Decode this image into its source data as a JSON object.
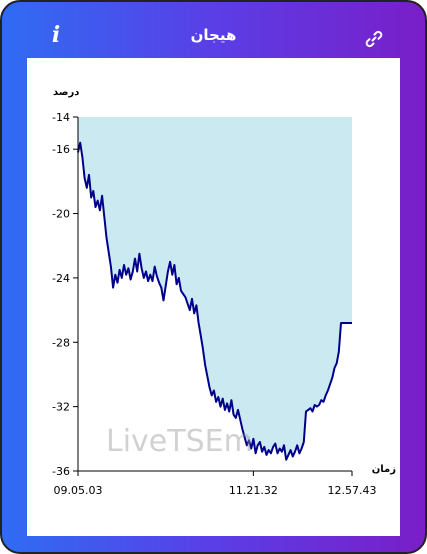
{
  "header": {
    "title": "هیجان",
    "info_icon": "info-icon",
    "link_icon": "link-icon"
  },
  "colors": {
    "gradient_start": "#2f6cf3",
    "gradient_end": "#7a1ec8",
    "area_fill": "#cbe9f1",
    "line": "#00008b"
  },
  "chart_data": {
    "type": "area",
    "title": "",
    "ylabel": "درصد",
    "xlabel": "زمان",
    "ylim": [
      -36,
      -14
    ],
    "yticks": [
      "-14",
      "-16",
      "-20",
      "-24",
      "-28",
      "-32",
      "-36"
    ],
    "xticks": [
      "09.05.03",
      "11.21.32",
      "12.57.43"
    ],
    "watermark": "LiveTSEm",
    "series": [
      {
        "values": [
          -16.2,
          -15.6,
          -16.5,
          -17.8,
          -18.4,
          -17.6,
          -19.0,
          -18.6,
          -19.6,
          -19.2,
          -19.8,
          -18.9,
          -20.2,
          -21.5,
          -22.4,
          -23.3,
          -24.6,
          -23.8,
          -24.3,
          -23.5,
          -24.0,
          -23.2,
          -23.8,
          -23.4,
          -24.1,
          -23.6,
          -22.8,
          -23.6,
          -22.5,
          -23.4,
          -24.0,
          -23.6,
          -24.2,
          -23.8,
          -24.2,
          -23.3,
          -23.9,
          -24.3,
          -24.6,
          -25.4,
          -24.5,
          -23.6,
          -23.0,
          -23.8,
          -23.2,
          -24.4,
          -24.0,
          -24.8,
          -25.0,
          -25.2,
          -25.6,
          -26.0,
          -25.3,
          -26.2,
          -25.7,
          -26.8,
          -27.6,
          -28.4,
          -29.4,
          -30.1,
          -30.8,
          -31.3,
          -31.0,
          -31.7,
          -31.4,
          -32.0,
          -31.5,
          -32.2,
          -31.8,
          -32.3,
          -31.6,
          -32.5,
          -32.7,
          -32.2,
          -32.8,
          -33.4,
          -33.9,
          -34.4,
          -34.1,
          -34.6,
          -34.0,
          -34.9,
          -34.4,
          -34.2,
          -34.8,
          -34.5,
          -35.0,
          -34.7,
          -34.9,
          -34.5,
          -34.3,
          -34.9,
          -34.6,
          -34.8,
          -34.4,
          -35.3,
          -35.0,
          -34.7,
          -35.1,
          -34.8,
          -34.4,
          -34.9,
          -34.6,
          -34.2,
          -32.3,
          -32.2,
          -32.1,
          -32.3,
          -31.9,
          -32.0,
          -31.9,
          -31.6,
          -31.7,
          -31.3,
          -31.0,
          -30.6,
          -30.2,
          -29.6,
          -29.3,
          -28.6,
          -26.8,
          -26.8,
          -26.8,
          -26.8,
          -26.8,
          -26.8
        ]
      }
    ]
  }
}
